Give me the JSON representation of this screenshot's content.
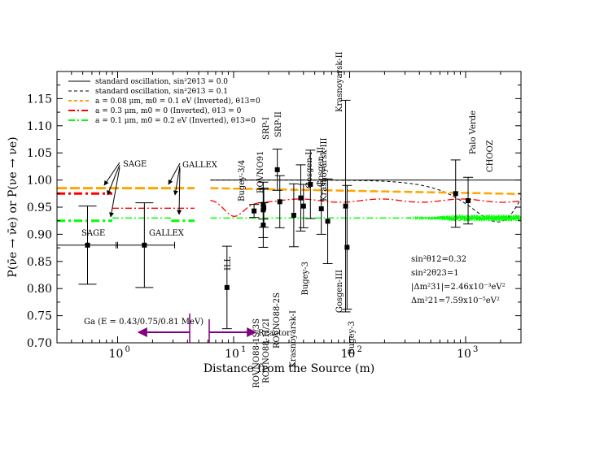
{
  "chart_data": {
    "type": "scatter",
    "xscale": "log",
    "xlim": [
      0.3,
      3000
    ],
    "ylim": [
      0.7,
      1.2
    ],
    "xlabel": "Distance from the Source (m)",
    "ylabel": "P(ν̄e → ν̄e) or P(νe → νe)",
    "x_ticks": [
      {
        "value": 1,
        "label": "10",
        "exp": "0"
      },
      {
        "value": 10,
        "label": "10",
        "exp": "1"
      },
      {
        "value": 100,
        "label": "10",
        "exp": "2"
      },
      {
        "value": 1000,
        "label": "10",
        "exp": "3"
      }
    ],
    "y_ticks": [
      0.7,
      0.75,
      0.8,
      0.85,
      0.9,
      0.95,
      1.0,
      1.05,
      1.1,
      1.15
    ],
    "y_tick_labels": [
      "0.70",
      "0.75",
      "0.80",
      "0.85",
      "0.90",
      "0.95",
      "1.00",
      "1.05",
      "1.10",
      "1.15"
    ],
    "legend": [
      {
        "label": "standard oscillation, sin²2θ13 = 0.0",
        "color": "#000000",
        "dash": "solid"
      },
      {
        "label": "standard oscillation, sin²2θ13 = 0.1",
        "color": "#000000",
        "dash": "dashed"
      },
      {
        "label": "a = 0.08 μm, m0 = 0.1 eV (Inverted), θ13=0",
        "color": "#ffa500",
        "dash": "dashed"
      },
      {
        "label": "a = 0.3 μm, m0 = 0 (Inverted), θ13 = 0",
        "color": "#ff0000",
        "dash": "dashdot"
      },
      {
        "label": "a = 0.1 μm, m0 = 0.2 eV (Inverted), θ13=0",
        "color": "#00ff00",
        "dash": "dashdot"
      }
    ],
    "gallium_points": [
      {
        "name": "SAGE",
        "x": 0.55,
        "y": 0.88,
        "ylo": 0.808,
        "yhi": 0.952,
        "xlo": 0.3,
        "xhi": 1.0
      },
      {
        "name": "GALLEX",
        "x": 1.7,
        "y": 0.88,
        "ylo": 0.802,
        "yhi": 0.958,
        "xlo": 0.97,
        "xhi": 3.1
      }
    ],
    "reactor_points": [
      {
        "name": "ILL",
        "x": 8.76,
        "y": 0.802,
        "ylo": 0.726,
        "yhi": 0.878
      },
      {
        "name": "Bugey-3/4",
        "x": 15,
        "y": 0.943,
        "ylo": 0.931,
        "yhi": 0.955
      },
      {
        "name": "ROVNO91",
        "x": 18,
        "y": 0.955,
        "ylo": 0.928,
        "yhi": 0.983
      },
      {
        "name": "ROVNO88-1S/3S",
        "x": 18,
        "y": 0.945,
        "ylo": 0.894,
        "yhi": 0.996
      },
      {
        "name": "ROVNO88-1I/2I",
        "x": 18,
        "y": 0.917,
        "ylo": 0.876,
        "yhi": 0.958
      },
      {
        "name": "SRP-I",
        "x": 18.2,
        "y": 0.949,
        "ylo": 0.913,
        "yhi": 0.985
      },
      {
        "name": "SRP-II",
        "x": 23.8,
        "y": 1.019,
        "ylo": 0.981,
        "yhi": 1.057
      },
      {
        "name": "ROVNO88-2S",
        "x": 25,
        "y": 0.96,
        "ylo": 0.912,
        "yhi": 1.008
      },
      {
        "name": "Krasnoyarsk-I",
        "x": 33,
        "y": 0.935,
        "ylo": 0.877,
        "yhi": 0.993
      },
      {
        "name": "Gosgen-I",
        "x": 37.9,
        "y": 0.967,
        "ylo": 0.906,
        "yhi": 1.028
      },
      {
        "name": "Bugey-3",
        "x": 40,
        "y": 0.952,
        "ylo": 0.912,
        "yhi": 0.992
      },
      {
        "name": "Gosgen-II",
        "x": 45.9,
        "y": 0.992,
        "ylo": 0.929,
        "yhi": 1.055
      },
      {
        "name": "Krasnoyarsk-III",
        "x": 57,
        "y": 0.947,
        "ylo": 0.9,
        "yhi": 0.994
      },
      {
        "name": "Gosgen-III",
        "x": 64.7,
        "y": 0.924,
        "ylo": 0.846,
        "yhi": 1.002
      },
      {
        "name": "Krasnoyarsk-II",
        "x": 92.3,
        "y": 0.952,
        "ylo": 0.757,
        "yhi": 1.147
      },
      {
        "name": "Bugey-3",
        "x": 95,
        "y": 0.876,
        "ylo": 0.762,
        "yhi": 0.99
      },
      {
        "name": "Palo Verde",
        "x": 820,
        "y": 0.975,
        "ylo": 0.913,
        "yhi": 1.037
      },
      {
        "name": "CHOOZ",
        "x": 1050,
        "y": 0.962,
        "ylo": 0.919,
        "yhi": 1.005
      }
    ],
    "ga_constant_levels": [
      {
        "color": "#ffa500",
        "y": 0.985
      },
      {
        "color": "#ff0000",
        "y": 0.975
      },
      {
        "color": "#00ff00",
        "y": 0.925
      }
    ],
    "ga_annotations": {
      "sage_label": "SAGE",
      "gallex_label": "GALLEX",
      "source_label": "Ga (E = 0.43/0.75/0.81 MeV)",
      "reactor_label": "Reactor"
    },
    "parameters": [
      "sin²θ12=0.32",
      "sin²2θ23=1",
      "|Δm²31|=2.46x10⁻³eV²",
      "Δm²21=7.59x10⁻⁵eV²"
    ],
    "colors": {
      "arrow": "#800080",
      "marker": "#000000"
    }
  }
}
